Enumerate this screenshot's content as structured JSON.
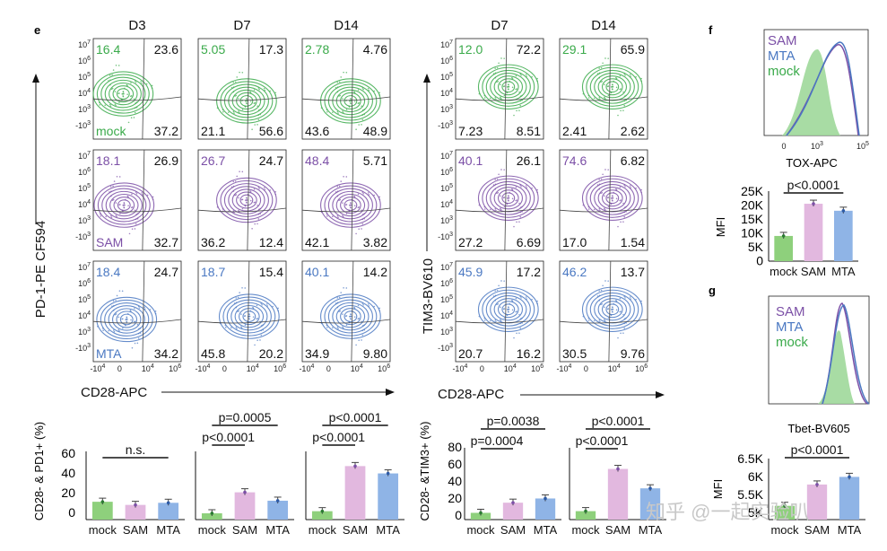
{
  "panel_e": {
    "label": "e",
    "pd1": {
      "col_headers": [
        "D3",
        "D7",
        "D14"
      ],
      "y_axis_title": "PD-1-PE CF594",
      "x_axis_title": "CD28-APC",
      "rows": [
        {
          "group": "mock",
          "quadrants": [
            [
              "16.4",
              "23.6",
              "37.2"
            ],
            [
              "5.05",
              "17.3",
              "56.6",
              "21.1"
            ],
            [
              "2.78",
              "4.76",
              "48.9",
              "43.6"
            ]
          ]
        },
        {
          "group": "SAM",
          "quadrants": [
            [
              "18.1",
              "26.9",
              "32.7"
            ],
            [
              "26.7",
              "24.7",
              "12.4",
              "36.2"
            ],
            [
              "48.4",
              "5.71",
              "3.82",
              "42.1"
            ]
          ]
        },
        {
          "group": "MTA",
          "quadrants": [
            [
              "18.4",
              "24.7",
              "34.2"
            ],
            [
              "18.7",
              "15.4",
              "20.2",
              "45.8"
            ],
            [
              "40.1",
              "14.2",
              "9.80",
              "34.9"
            ]
          ]
        }
      ]
    },
    "tim3": {
      "col_headers": [
        "D7",
        "D14"
      ],
      "y_axis_title": "TIM3-BV610",
      "x_axis_title": "CD28-APC",
      "rows": [
        {
          "quadrants": [
            [
              "12.0",
              "72.2",
              "8.51",
              "7.23"
            ],
            [
              "29.1",
              "65.9",
              "2.62",
              "2.41"
            ]
          ]
        },
        {
          "quadrants": [
            [
              "40.1",
              "26.1",
              "6.69",
              "27.2"
            ],
            [
              "74.6",
              "6.82",
              "1.54",
              "17.0"
            ]
          ]
        },
        {
          "quadrants": [
            [
              "45.9",
              "17.2",
              "16.2",
              "20.7"
            ],
            [
              "46.2",
              "13.7",
              "9.76",
              "30.5"
            ]
          ]
        }
      ]
    },
    "y_ticks": [
      "10^7",
      "10^6",
      "10^5",
      "10^4",
      "10^3",
      "-10^3"
    ],
    "x_ticks": [
      "-10^4",
      "0",
      "10^4",
      "10^6"
    ]
  },
  "bar_pd1": {
    "y_axis_title": "CD28- & PD1+ (%)",
    "y_ticks": [
      "60",
      "40",
      "20",
      "0"
    ],
    "groups": [
      "mock",
      "SAM",
      "MTA"
    ],
    "subplots": [
      {
        "values": [
          17,
          14,
          16
        ],
        "sig": [
          "n.s."
        ]
      },
      {
        "values": [
          6,
          26,
          18
        ],
        "sig": [
          "p=0.0005",
          "p<0.0001"
        ]
      },
      {
        "values": [
          8,
          51,
          44
        ],
        "sig": [
          "p<0.0001",
          "p<0.0001"
        ]
      }
    ]
  },
  "bar_tim3": {
    "y_axis_title": "CD28- &TIM3+ (%)",
    "y_ticks": [
      "80",
      "60",
      "40",
      "20",
      "0"
    ],
    "groups": [
      "mock",
      "SAM",
      "MTA"
    ],
    "subplots": [
      {
        "values": [
          8,
          20,
          25
        ],
        "sig": [
          "p=0.0038",
          "p=0.0004"
        ]
      },
      {
        "values": [
          10,
          60,
          37
        ],
        "sig": [
          "p<0.0001",
          "p<0.0001"
        ]
      }
    ]
  },
  "panel_f": {
    "label": "f",
    "legend": [
      "SAM",
      "MTA",
      "mock"
    ],
    "x_axis_title": "TOX-APC",
    "x_ticks": [
      "0",
      "10^3",
      "10^5"
    ],
    "bar": {
      "y_axis_title": "MFI",
      "y_ticks": [
        "25K",
        "20K",
        "15K",
        "10K",
        "5K",
        "0"
      ],
      "sig": "p<0.0001",
      "values": [
        9000,
        20500,
        18000
      ],
      "groups": [
        "mock",
        "SAM",
        "MTA"
      ]
    }
  },
  "panel_g": {
    "label": "g",
    "legend": [
      "SAM",
      "MTA",
      "mock"
    ],
    "x_axis_title": "Tbet-BV605",
    "bar": {
      "y_axis_title": "MFI",
      "y_ticks": [
        "6.5K",
        "6K",
        "5.5K",
        "5K"
      ],
      "sig": "p<0.0001",
      "values": [
        5050,
        5750,
        6000
      ],
      "groups": [
        "mock",
        "SAM",
        "MTA"
      ]
    }
  },
  "colors": {
    "mock": "#3aaa4a",
    "SAM": "#7b4fa6",
    "MTA": "#4a78c2",
    "mock_bar": "#8ed07c",
    "SAM_bar": "#e2b8df",
    "MTA_bar": "#8fb4e6"
  },
  "watermark": "知乎 @一起实验叭"
}
